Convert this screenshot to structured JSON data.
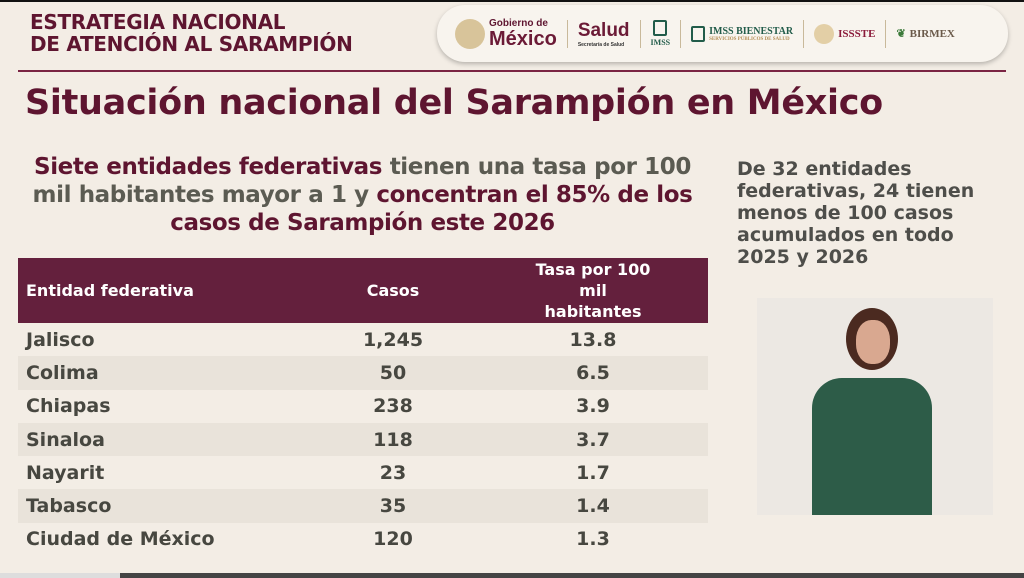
{
  "header": {
    "brand_line1": "ESTRATEGIA NACIONAL",
    "brand_line2": "DE ATENCIÓN AL SARAMPIÓN",
    "logos": {
      "gob_small": "Gobierno de",
      "gob_big": "México",
      "salud": "Salud",
      "salud_sub": "Secretaría de Salud",
      "imss": "IMSS",
      "imss_bienestar": "IMSS BIENESTAR",
      "imss_bienestar_sub": "SERVICIOS PÚBLICOS DE SALUD",
      "issste": "ISSSTE",
      "birmex": "BIRMEX"
    }
  },
  "title": "Situación nacional del Sarampión en México",
  "subtitle": {
    "p1": "Siete entidades federativas",
    "p2": " tienen una tasa por 100 mil habitantes mayor a 1 y ",
    "p3": "concentran el 85% de los casos de Sarampión este 2026"
  },
  "side_note": "De 32 entidades federativas, 24 tienen menos de 100 casos acumulados en todo 2025 y 2026",
  "table": {
    "headers": [
      "Entidad federativa",
      "Casos",
      "Tasa por 100 mil habitantes"
    ],
    "rows": [
      [
        "Jalisco",
        "1,245",
        "13.8"
      ],
      [
        "Colima",
        "50",
        "6.5"
      ],
      [
        "Chiapas",
        "238",
        "3.9"
      ],
      [
        "Sinaloa",
        "118",
        "3.7"
      ],
      [
        "Nayarit",
        "23",
        "1.7"
      ],
      [
        "Tabasco",
        "35",
        "1.4"
      ],
      [
        "Ciudad de México",
        "120",
        "1.3"
      ]
    ]
  },
  "colors": {
    "maroon": "#5e1530",
    "background": "#f3ede5"
  }
}
